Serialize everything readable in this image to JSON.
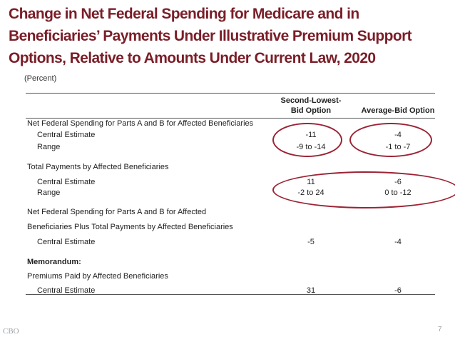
{
  "title_lines": [
    "Change in Net Federal Spending for Medicare and in",
    "Beneficiaries’ Payments Under Illustrative Premium Support",
    "Options, Relative to Amounts Under Current Law, 2020"
  ],
  "units": "(Percent)",
  "columns": {
    "col1_line1": "Second-Lowest-",
    "col1_line2": "Bid Option",
    "col2": "Average-Bid Option"
  },
  "rows": [
    {
      "label": "Net Federal Spending for Parts A and B for Affected Beneficiaries",
      "v1": "",
      "v2": ""
    },
    {
      "label": "Central Estimate",
      "v1": "-11",
      "v2": "-4"
    },
    {
      "label": "Range",
      "v1": "-9 to -14",
      "v2": "-1 to -7"
    },
    {
      "label": "Total Payments by Affected Beneficiaries",
      "v1": "",
      "v2": ""
    },
    {
      "label": "Central Estimate",
      "v1": "11",
      "v2": "-6"
    },
    {
      "label": "Range",
      "v1": "-2 to 24",
      "v2": "0 to -12"
    },
    {
      "label": "Net Federal Spending for Parts A and B for Affected",
      "v1": "",
      "v2": ""
    },
    {
      "label": "Beneficiaries Plus Total Payments by Affected Beneficiaries",
      "v1": "",
      "v2": ""
    },
    {
      "label": "Central Estimate",
      "v1": "-5",
      "v2": "-4"
    },
    {
      "label": "Memorandum:",
      "v1": "",
      "v2": ""
    },
    {
      "label": "Premiums Paid by Affected Beneficiaries",
      "v1": "",
      "v2": ""
    },
    {
      "label": "Central Estimate",
      "v1": "31",
      "v2": "-6"
    }
  ],
  "footer": {
    "logo_text": "CBO",
    "page_number": "7"
  },
  "colors": {
    "title": "#7a1e28",
    "highlight": "#9b2335"
  }
}
